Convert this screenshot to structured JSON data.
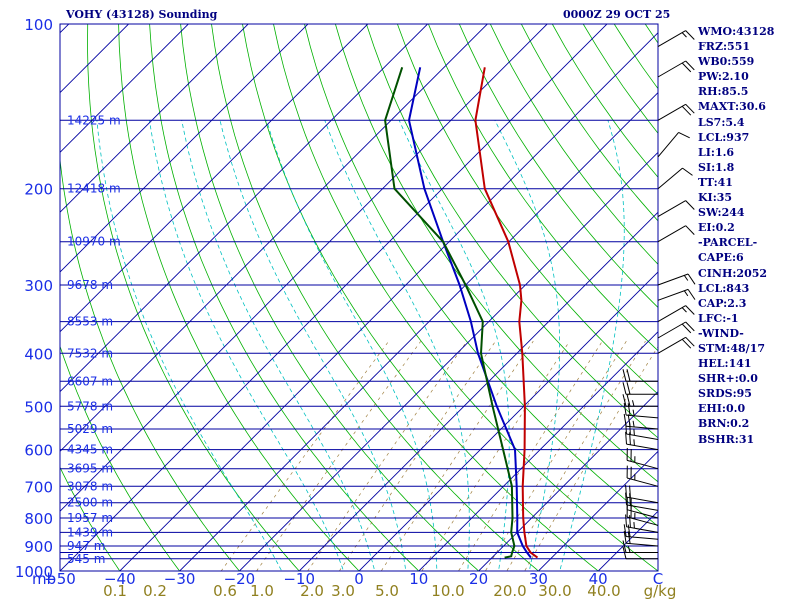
{
  "header": {
    "station": "VOHY (43128) Sounding",
    "datetime": "0000Z 29 OCT 25"
  },
  "indices": [
    "WMO:43128",
    "FRZ:551",
    "WB0:559",
    "PW:2.10",
    "RH:85.5",
    "MAXT:30.6",
    "LS7:5.4",
    "LCL:937",
    "LI:1.6",
    "SI:1.8",
    "TT:41",
    "KI:35",
    "SW:244",
    "EI:0.2",
    "-PARCEL-",
    "CAPE:6",
    "CINH:2052",
    "LCL:843",
    "CAP:2.3",
    "LFC:-1",
    "-WIND-",
    "STM:48/17",
    "HEL:141",
    "SHR+:0.0",
    "SRDS:95",
    "EHI:0.0",
    "BRN:0.2",
    "BSHR:31"
  ],
  "colors": {
    "isobar": "#0000a0",
    "isotherm": "#0000a0",
    "dry_adiabat": "#00b000",
    "moist_adiabat": "#00c0c0",
    "mixing_ratio": "#a08040",
    "temperature": "#c00000",
    "dewpoint": "#005000",
    "virtual_profile": "#0000c0",
    "label_text": "#1a2ee6",
    "mixing_label_text": "#908020",
    "wind_barb": "#000000"
  },
  "chart_data": {
    "type": "skew-t log-p sounding",
    "title": "VOHY (43128) Sounding",
    "xlabel": "°C",
    "ylabel": "mb",
    "xlim": [
      -50,
      50
    ],
    "ylim": [
      1000,
      100
    ],
    "pressure_ticks": [
      100,
      200,
      300,
      400,
      500,
      600,
      700,
      800,
      900,
      1000
    ],
    "temperature_ticks": [
      -50,
      -40,
      -30,
      -20,
      -10,
      0,
      10,
      20,
      30,
      40
    ],
    "x_unit_label": "C",
    "y_unit_label": "mb",
    "mixing_ratio_unit": "g/kg",
    "mixing_ratio_labels": [
      "0.1",
      "0.2",
      "0.6",
      "1.0",
      "2.0",
      "3.0",
      "5.0",
      "10.0",
      "20.0",
      "30.0",
      "40.0"
    ],
    "height_labels": [
      {
        "p": 150,
        "label": "14225 m"
      },
      {
        "p": 200,
        "label": "12418 m"
      },
      {
        "p": 250,
        "label": "10970 m"
      },
      {
        "p": 300,
        "label": "9678 m"
      },
      {
        "p": 350,
        "label": "8553 m"
      },
      {
        "p": 400,
        "label": "7532 m"
      },
      {
        "p": 450,
        "label": "6607 m"
      },
      {
        "p": 500,
        "label": "5778 m"
      },
      {
        "p": 550,
        "label": "5029 m"
      },
      {
        "p": 600,
        "label": "4345 m"
      },
      {
        "p": 650,
        "label": "3695 m"
      },
      {
        "p": 700,
        "label": "3078 m"
      },
      {
        "p": 750,
        "label": "2500 m"
      },
      {
        "p": 800,
        "label": "1957 m"
      },
      {
        "p": 850,
        "label": "1439 m"
      },
      {
        "p": 900,
        "label": "947 m"
      },
      {
        "p": 950,
        "label": "545 m"
      }
    ],
    "series": [
      {
        "name": "Temperature",
        "p": [
          945,
          925,
          900,
          850,
          800,
          700,
          600,
          500,
          400,
          350,
          320,
          300,
          250,
          200,
          150,
          120
        ],
        "t": [
          27.6,
          25.6,
          23.8,
          21.2,
          18.6,
          13.2,
          7.4,
          0.2,
          -9.1,
          -14.9,
          -18.1,
          -20.9,
          -30.1,
          -42.9,
          -55.9,
          -63.2
        ]
      },
      {
        "name": "Dewpoint",
        "p": [
          945,
          940,
          925,
          900,
          850,
          800,
          700,
          600,
          500,
          400,
          350,
          300,
          250,
          200,
          150,
          120
        ],
        "td": [
          22.1,
          23.0,
          22.5,
          21.8,
          19.0,
          16.8,
          11.4,
          3.8,
          -5.2,
          -16.0,
          -21.0,
          -30.0,
          -41.0,
          -58.0,
          -71.0,
          -77.0
        ]
      },
      {
        "name": "Virtual temperature profile",
        "p": [
          945,
          925,
          900,
          850,
          800,
          700,
          600,
          500,
          400,
          350,
          300,
          250,
          200,
          150,
          120
        ],
        "t": [
          26.5,
          25.0,
          23.2,
          20.0,
          17.6,
          12.2,
          5.8,
          -4.5,
          -16.5,
          -23.0,
          -31.0,
          -41.0,
          -53.0,
          -67.0,
          -74.0
        ]
      }
    ],
    "wind_barbs": [
      {
        "p": 950,
        "dir": 270,
        "spd": 10
      },
      {
        "p": 925,
        "dir": 270,
        "spd": 15
      },
      {
        "p": 900,
        "dir": 275,
        "spd": 20
      },
      {
        "p": 875,
        "dir": 275,
        "spd": 20
      },
      {
        "p": 850,
        "dir": 280,
        "spd": 25
      },
      {
        "p": 825,
        "dir": 285,
        "spd": 25
      },
      {
        "p": 800,
        "dir": 285,
        "spd": 20
      },
      {
        "p": 775,
        "dir": 280,
        "spd": 20
      },
      {
        "p": 750,
        "dir": 280,
        "spd": 20
      },
      {
        "p": 700,
        "dir": 285,
        "spd": 25
      },
      {
        "p": 650,
        "dir": 285,
        "spd": 25
      },
      {
        "p": 600,
        "dir": 280,
        "spd": 25
      },
      {
        "p": 575,
        "dir": 280,
        "spd": 25
      },
      {
        "p": 550,
        "dir": 275,
        "spd": 25
      },
      {
        "p": 525,
        "dir": 275,
        "spd": 25
      },
      {
        "p": 500,
        "dir": 270,
        "spd": 25
      },
      {
        "p": 475,
        "dir": 270,
        "spd": 20
      },
      {
        "p": 450,
        "dir": 270,
        "spd": 20
      },
      {
        "p": 400,
        "dir": 60,
        "spd": 20
      },
      {
        "p": 375,
        "dir": 60,
        "spd": 20
      },
      {
        "p": 350,
        "dir": 60,
        "spd": 15
      },
      {
        "p": 320,
        "dir": 70,
        "spd": 15
      },
      {
        "p": 300,
        "dir": 70,
        "spd": 15
      },
      {
        "p": 250,
        "dir": 60,
        "spd": 10
      },
      {
        "p": 225,
        "dir": 60,
        "spd": 10
      },
      {
        "p": 200,
        "dir": 50,
        "spd": 10
      },
      {
        "p": 175,
        "dir": 40,
        "spd": 10
      },
      {
        "p": 150,
        "dir": 60,
        "spd": 20
      },
      {
        "p": 125,
        "dir": 60,
        "spd": 20
      },
      {
        "p": 110,
        "dir": 60,
        "spd": 15
      }
    ]
  }
}
